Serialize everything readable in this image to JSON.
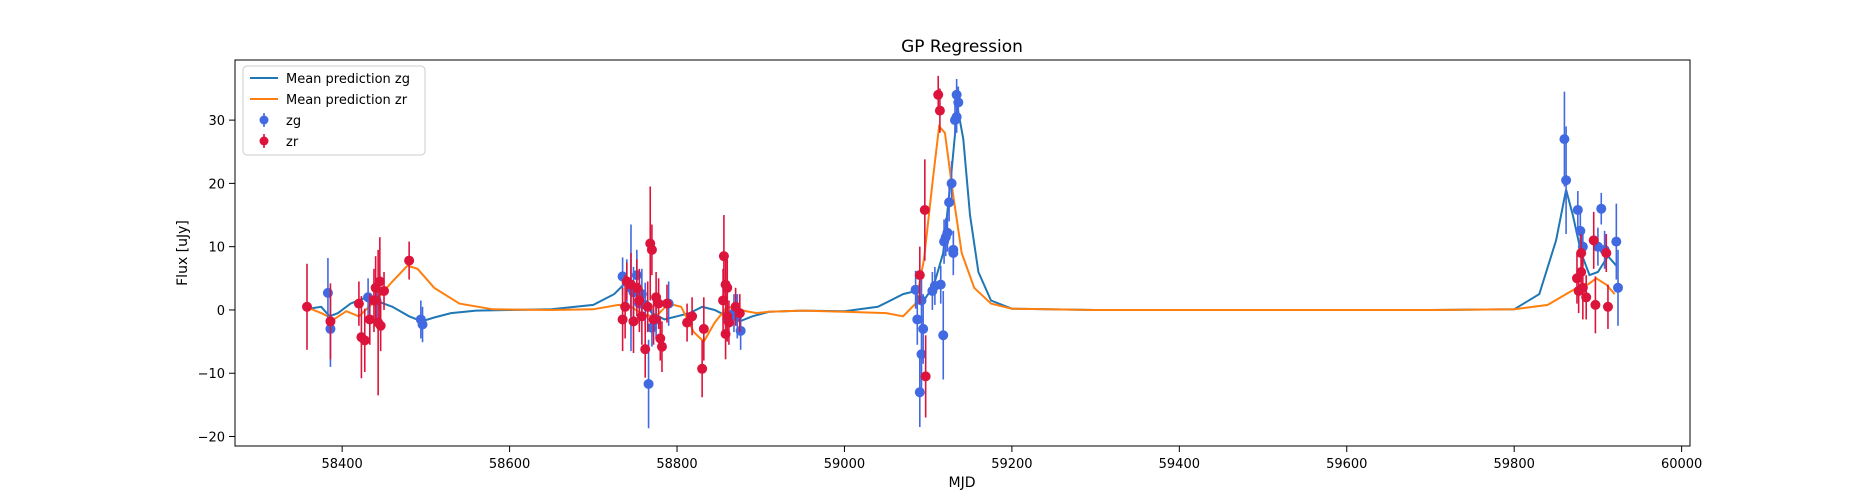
{
  "chart_data": {
    "type": "scatter",
    "title": "GP Regression",
    "xlabel": "MJD",
    "ylabel": "Flux [uJy]",
    "xlim": [
      58272,
      60010
    ],
    "ylim": [
      -21.5,
      39.5
    ],
    "x_ticks": [
      58400,
      58600,
      58800,
      59000,
      59200,
      59400,
      59600,
      59800,
      60000
    ],
    "y_ticks": [
      -20,
      -10,
      0,
      10,
      20,
      30
    ],
    "grid": false,
    "legend_position": "top-left",
    "colors": {
      "mean_zg": "#1f77b4",
      "mean_zr": "#ff7f0e",
      "zg": "#4169e1",
      "zr": "#dc143c"
    },
    "legend": [
      {
        "label": "Mean prediction zg",
        "kind": "line",
        "color": "#1f77b4"
      },
      {
        "label": "Mean prediction zr",
        "kind": "line",
        "color": "#ff7f0e"
      },
      {
        "label": "zg",
        "kind": "errorbar",
        "color": "#4169e1"
      },
      {
        "label": "zr",
        "kind": "errorbar",
        "color": "#dc143c"
      }
    ],
    "series": [
      {
        "name": "Mean prediction zg",
        "kind": "line",
        "color": "#1f77b4",
        "points": [
          [
            58360,
            0.2
          ],
          [
            58375,
            0.5
          ],
          [
            58385,
            -1.0
          ],
          [
            58395,
            -0.5
          ],
          [
            58410,
            1.0
          ],
          [
            58425,
            1.8
          ],
          [
            58440,
            1.5
          ],
          [
            58460,
            0.5
          ],
          [
            58480,
            -1.0
          ],
          [
            58495,
            -1.8
          ],
          [
            58510,
            -1.2
          ],
          [
            58530,
            -0.5
          ],
          [
            58560,
            -0.1
          ],
          [
            58600,
            0.0
          ],
          [
            58650,
            0.1
          ],
          [
            58700,
            0.8
          ],
          [
            58725,
            2.5
          ],
          [
            58740,
            4.5
          ],
          [
            58755,
            2.0
          ],
          [
            58770,
            -0.5
          ],
          [
            58785,
            -1.5
          ],
          [
            58800,
            -1.0
          ],
          [
            58815,
            -0.5
          ],
          [
            58830,
            0.5
          ],
          [
            58845,
            0.0
          ],
          [
            58860,
            -1.0
          ],
          [
            58875,
            -1.8
          ],
          [
            58890,
            -1.0
          ],
          [
            58910,
            -0.3
          ],
          [
            58950,
            -0.1
          ],
          [
            59000,
            -0.2
          ],
          [
            59040,
            0.5
          ],
          [
            59070,
            2.5
          ],
          [
            59085,
            3.0
          ],
          [
            59092,
            1.0
          ],
          [
            59100,
            2.5
          ],
          [
            59108,
            4.5
          ],
          [
            59118,
            9.0
          ],
          [
            59128,
            22.0
          ],
          [
            59135,
            32.0
          ],
          [
            59142,
            27.0
          ],
          [
            59150,
            15.0
          ],
          [
            59160,
            6.0
          ],
          [
            59175,
            1.5
          ],
          [
            59200,
            0.2
          ],
          [
            59300,
            0.0
          ],
          [
            59500,
            0.0
          ],
          [
            59700,
            0.0
          ],
          [
            59800,
            0.1
          ],
          [
            59830,
            2.5
          ],
          [
            59850,
            11.0
          ],
          [
            59862,
            19.0
          ],
          [
            59870,
            15.0
          ],
          [
            59880,
            9.0
          ],
          [
            59890,
            5.5
          ],
          [
            59900,
            6.0
          ],
          [
            59912,
            8.5
          ],
          [
            59922,
            7.0
          ]
        ]
      },
      {
        "name": "Mean prediction zr",
        "kind": "line",
        "color": "#ff7f0e",
        "points": [
          [
            58360,
            0.3
          ],
          [
            58375,
            -0.5
          ],
          [
            58390,
            -1.5
          ],
          [
            58405,
            -0.2
          ],
          [
            58420,
            -1.0
          ],
          [
            58440,
            1.5
          ],
          [
            58460,
            4.5
          ],
          [
            58478,
            7.0
          ],
          [
            58490,
            6.5
          ],
          [
            58510,
            3.5
          ],
          [
            58540,
            1.0
          ],
          [
            58580,
            0.1
          ],
          [
            58650,
            0.0
          ],
          [
            58700,
            0.1
          ],
          [
            58730,
            0.8
          ],
          [
            58745,
            0.5
          ],
          [
            58760,
            -0.8
          ],
          [
            58775,
            -1.0
          ],
          [
            58790,
            1.0
          ],
          [
            58805,
            0.5
          ],
          [
            58820,
            -3.5
          ],
          [
            58832,
            -5.0
          ],
          [
            58845,
            -2.0
          ],
          [
            58860,
            0.5
          ],
          [
            58875,
            0.0
          ],
          [
            58895,
            -0.5
          ],
          [
            58910,
            -0.3
          ],
          [
            58950,
            -0.1
          ],
          [
            59000,
            -0.3
          ],
          [
            59050,
            -0.5
          ],
          [
            59070,
            -1.0
          ],
          [
            59085,
            1.0
          ],
          [
            59095,
            8.0
          ],
          [
            59105,
            20.0
          ],
          [
            59113,
            29.0
          ],
          [
            59120,
            28.0
          ],
          [
            59130,
            18.0
          ],
          [
            59140,
            9.0
          ],
          [
            59155,
            3.5
          ],
          [
            59175,
            1.0
          ],
          [
            59200,
            0.2
          ],
          [
            59300,
            0.0
          ],
          [
            59500,
            0.0
          ],
          [
            59700,
            0.0
          ],
          [
            59800,
            0.1
          ],
          [
            59840,
            0.8
          ],
          [
            59862,
            2.5
          ],
          [
            59875,
            3.5
          ],
          [
            59888,
            4.0
          ],
          [
            59898,
            5.0
          ],
          [
            59910,
            4.0
          ],
          [
            59920,
            2.5
          ]
        ]
      },
      {
        "name": "zg",
        "kind": "errorbar",
        "color": "#4169e1",
        "points": [
          {
            "x": 58383,
            "y": 2.7,
            "err": 5.5
          },
          {
            "x": 58386,
            "y": -3.0,
            "err": 6.0
          },
          {
            "x": 58431,
            "y": 2.0,
            "err": 3.0
          },
          {
            "x": 58441,
            "y": 1.5,
            "err": 3.5
          },
          {
            "x": 58494,
            "y": -1.5,
            "err": 3.0
          },
          {
            "x": 58496,
            "y": -2.3,
            "err": 2.8
          },
          {
            "x": 58735,
            "y": 5.3,
            "err": 3.0
          },
          {
            "x": 58740,
            "y": 4.5,
            "err": 3.5
          },
          {
            "x": 58745,
            "y": 3.5,
            "err": 10.0
          },
          {
            "x": 58748,
            "y": 2.8,
            "err": 4.0
          },
          {
            "x": 58752,
            "y": 5.5,
            "err": 4.0
          },
          {
            "x": 58755,
            "y": 1.0,
            "err": 3.5
          },
          {
            "x": 58758,
            "y": 2.5,
            "err": 4.0
          },
          {
            "x": 58762,
            "y": 0.8,
            "err": 3.5
          },
          {
            "x": 58766,
            "y": -11.7,
            "err": 7.0
          },
          {
            "x": 58770,
            "y": -2.8,
            "err": 3.0
          },
          {
            "x": 58775,
            "y": -1.5,
            "err": 3.0
          },
          {
            "x": 58790,
            "y": 1.0,
            "err": 3.5
          },
          {
            "x": 58860,
            "y": -1.5,
            "err": 3.0
          },
          {
            "x": 58868,
            "y": -0.5,
            "err": 3.0
          },
          {
            "x": 58872,
            "y": -1.0,
            "err": 3.5
          },
          {
            "x": 58876,
            "y": -3.3,
            "err": 3.0
          },
          {
            "x": 59085,
            "y": 3.2,
            "err": 3.0
          },
          {
            "x": 59087,
            "y": -1.5,
            "err": 4.0
          },
          {
            "x": 59090,
            "y": -13.0,
            "err": 5.5
          },
          {
            "x": 59092,
            "y": -7.0,
            "err": 6.0
          },
          {
            "x": 59094,
            "y": -3.0,
            "err": 5.5
          },
          {
            "x": 59092,
            "y": 1.5,
            "err": 3.5
          },
          {
            "x": 59105,
            "y": 3.0,
            "err": 3.0
          },
          {
            "x": 59108,
            "y": 3.8,
            "err": 3.0
          },
          {
            "x": 59115,
            "y": 4.0,
            "err": 3.0
          },
          {
            "x": 59118,
            "y": -4.0,
            "err": 7.0
          },
          {
            "x": 59119,
            "y": 10.8,
            "err": 3.5
          },
          {
            "x": 59121,
            "y": 11.5,
            "err": 3.0
          },
          {
            "x": 59123,
            "y": 12.2,
            "err": 3.0
          },
          {
            "x": 59125,
            "y": 17.0,
            "err": 3.0
          },
          {
            "x": 59128,
            "y": 20.0,
            "err": 3.5
          },
          {
            "x": 59130,
            "y": 9.5,
            "err": 3.0
          },
          {
            "x": 59132,
            "y": 30.0,
            "err": 2.5
          },
          {
            "x": 59134,
            "y": 34.0,
            "err": 2.5
          },
          {
            "x": 59136,
            "y": 32.8,
            "err": 2.5
          },
          {
            "x": 59134,
            "y": 30.5,
            "err": 2.5
          },
          {
            "x": 59130,
            "y": 9.0,
            "err": 3.5
          },
          {
            "x": 59860,
            "y": 27.0,
            "err": 7.5
          },
          {
            "x": 59862,
            "y": 20.5,
            "err": 8.5
          },
          {
            "x": 59876,
            "y": 15.8,
            "err": 3.0
          },
          {
            "x": 59879,
            "y": 12.5,
            "err": 3.0
          },
          {
            "x": 59882,
            "y": 10.0,
            "err": 3.0
          },
          {
            "x": 59900,
            "y": 10.0,
            "err": 3.0
          },
          {
            "x": 59904,
            "y": 16.0,
            "err": 2.5
          },
          {
            "x": 59908,
            "y": 9.5,
            "err": 3.0
          },
          {
            "x": 59922,
            "y": 10.8,
            "err": 6.0
          },
          {
            "x": 59924,
            "y": 3.5,
            "err": 6.0
          }
        ]
      },
      {
        "name": "zr",
        "kind": "errorbar",
        "color": "#dc143c",
        "points": [
          {
            "x": 58358,
            "y": 0.5,
            "err": 6.8
          },
          {
            "x": 58386,
            "y": -1.8,
            "err": 6.0
          },
          {
            "x": 58420,
            "y": 1.0,
            "err": 3.5
          },
          {
            "x": 58423,
            "y": -4.3,
            "err": 6.5
          },
          {
            "x": 58427,
            "y": -4.8,
            "err": 5.0
          },
          {
            "x": 58433,
            "y": -1.5,
            "err": 4.0
          },
          {
            "x": 58438,
            "y": 1.5,
            "err": 5.0
          },
          {
            "x": 58440,
            "y": 3.5,
            "err": 5.0
          },
          {
            "x": 58443,
            "y": -2.0,
            "err": 11.5
          },
          {
            "x": 58445,
            "y": 4.5,
            "err": 7.0
          },
          {
            "x": 58446,
            "y": -2.5,
            "err": 4.0
          },
          {
            "x": 58450,
            "y": 3.0,
            "err": 3.0
          },
          {
            "x": 58480,
            "y": 7.8,
            "err": 3.0
          },
          {
            "x": 58735,
            "y": -1.5,
            "err": 5.0
          },
          {
            "x": 58738,
            "y": 0.5,
            "err": 5.0
          },
          {
            "x": 58740,
            "y": 4.5,
            "err": 3.0
          },
          {
            "x": 58745,
            "y": 4.0,
            "err": 5.0
          },
          {
            "x": 58748,
            "y": -1.8,
            "err": 5.0
          },
          {
            "x": 58752,
            "y": 3.5,
            "err": 4.5
          },
          {
            "x": 58755,
            "y": 1.5,
            "err": 5.0
          },
          {
            "x": 58758,
            "y": -1.0,
            "err": 4.5
          },
          {
            "x": 58762,
            "y": -6.2,
            "err": 4.5
          },
          {
            "x": 58765,
            "y": 0.5,
            "err": 4.0
          },
          {
            "x": 58768,
            "y": 10.5,
            "err": 9.0
          },
          {
            "x": 58770,
            "y": 9.5,
            "err": 4.0
          },
          {
            "x": 58772,
            "y": -1.5,
            "err": 4.0
          },
          {
            "x": 58775,
            "y": 2.0,
            "err": 4.0
          },
          {
            "x": 58778,
            "y": 1.0,
            "err": 4.0
          },
          {
            "x": 58780,
            "y": -4.5,
            "err": 3.5
          },
          {
            "x": 58782,
            "y": -5.8,
            "err": 4.0
          },
          {
            "x": 58788,
            "y": 1.0,
            "err": 3.0
          },
          {
            "x": 58812,
            "y": -2.0,
            "err": 3.0
          },
          {
            "x": 58818,
            "y": -1.0,
            "err": 3.0
          },
          {
            "x": 58830,
            "y": -9.3,
            "err": 4.5
          },
          {
            "x": 58832,
            "y": -3.0,
            "err": 5.0
          },
          {
            "x": 58855,
            "y": 1.5,
            "err": 5.0
          },
          {
            "x": 58856,
            "y": 8.5,
            "err": 6.5
          },
          {
            "x": 58858,
            "y": 4.0,
            "err": 5.0
          },
          {
            "x": 58860,
            "y": 3.5,
            "err": 4.5
          },
          {
            "x": 58860,
            "y": -1.0,
            "err": 4.0
          },
          {
            "x": 58858,
            "y": -3.8,
            "err": 4.0
          },
          {
            "x": 58862,
            "y": -2.0,
            "err": 3.5
          },
          {
            "x": 58870,
            "y": 0.5,
            "err": 3.0
          },
          {
            "x": 58875,
            "y": -0.5,
            "err": 3.0
          },
          {
            "x": 59090,
            "y": 5.5,
            "err": 4.5
          },
          {
            "x": 59096,
            "y": 15.8,
            "err": 8.0
          },
          {
            "x": 59097,
            "y": -10.5,
            "err": 6.5
          },
          {
            "x": 59112,
            "y": 34.0,
            "err": 3.0
          },
          {
            "x": 59114,
            "y": 31.5,
            "err": 3.5
          },
          {
            "x": 59875,
            "y": 5.0,
            "err": 4.0
          },
          {
            "x": 59877,
            "y": 3.0,
            "err": 3.5
          },
          {
            "x": 59880,
            "y": 6.0,
            "err": 3.0
          },
          {
            "x": 59880,
            "y": 9.0,
            "err": 3.0
          },
          {
            "x": 59882,
            "y": 3.5,
            "err": 5.0
          },
          {
            "x": 59886,
            "y": 2.0,
            "err": 3.5
          },
          {
            "x": 59895,
            "y": 11.0,
            "err": 4.5
          },
          {
            "x": 59897,
            "y": 0.8,
            "err": 4.5
          },
          {
            "x": 59910,
            "y": 9.0,
            "err": 3.0
          },
          {
            "x": 59912,
            "y": 0.5,
            "err": 3.5
          }
        ]
      }
    ]
  }
}
